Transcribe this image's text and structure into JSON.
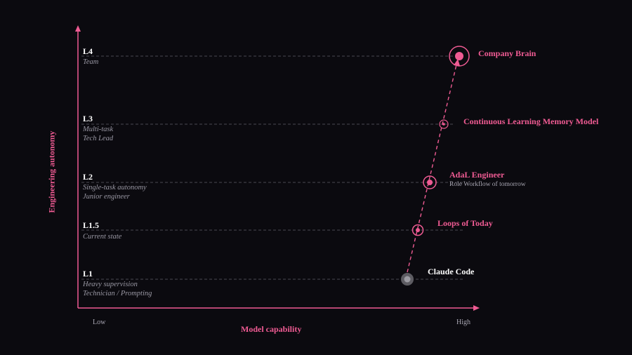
{
  "axes": {
    "x_title": "Model capability",
    "y_title": "Engineering autonomy",
    "x_low": "Low",
    "x_high": "High"
  },
  "levels": [
    {
      "label": "L4",
      "lines": [
        "Team"
      ]
    },
    {
      "label": "L3",
      "lines": [
        "Multi-task",
        "Tech Lead"
      ]
    },
    {
      "label": "L2",
      "lines": [
        "Single-task autonomy",
        "Junior engineer"
      ]
    },
    {
      "label": "L1.5",
      "lines": [
        "Current state"
      ]
    },
    {
      "label": "L1",
      "lines": [
        "Heavy supervision",
        "Technician / Prompting"
      ]
    }
  ],
  "milestones": [
    {
      "name": "Company Brain",
      "subtitle": ""
    },
    {
      "name": "Continuous Learning Memory Model",
      "subtitle": ""
    },
    {
      "name": "AdaL Engineer",
      "subtitle": "Role Workflow of tomorrow"
    },
    {
      "name": "Loops of Today",
      "subtitle": ""
    },
    {
      "name": "Claude Code",
      "subtitle": ""
    }
  ],
  "colors": {
    "accent": "#ef5b93",
    "background": "#0b0a0f",
    "muted": "#9a98a4",
    "current_marker": "#6b6a70"
  }
}
